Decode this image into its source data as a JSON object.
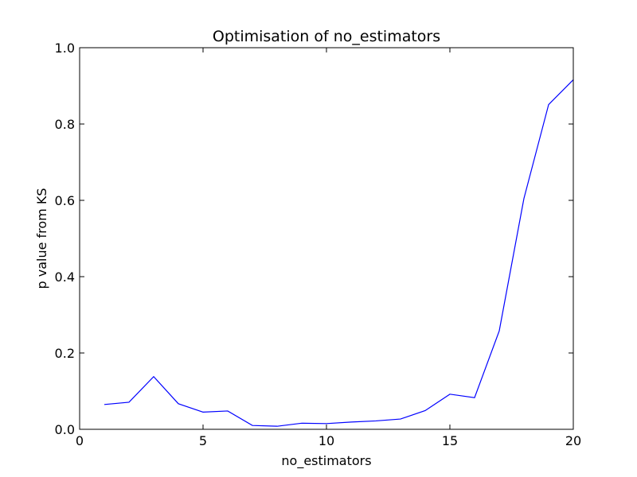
{
  "chart_data": {
    "type": "line",
    "title": "Optimisation of no_estimators",
    "xlabel": "no_estimators",
    "ylabel": "p value from KS",
    "xlim": [
      0,
      20
    ],
    "ylim": [
      0.0,
      1.0
    ],
    "xticks": [
      0,
      5,
      10,
      15,
      20
    ],
    "xtick_labels": [
      "0",
      "5",
      "10",
      "15",
      "20"
    ],
    "yticks": [
      0.0,
      0.2,
      0.4,
      0.6,
      0.8,
      1.0
    ],
    "ytick_labels": [
      "0.0",
      "0.2",
      "0.4",
      "0.6",
      "0.8",
      "1.0"
    ],
    "grid": false,
    "series": [
      {
        "name": "p value",
        "color": "#0000ff",
        "x": [
          1,
          2,
          3,
          4,
          5,
          6,
          7,
          8,
          9,
          10,
          11,
          12,
          13,
          14,
          15,
          16,
          17,
          18,
          19,
          20
        ],
        "y": [
          0.065,
          0.071,
          0.138,
          0.067,
          0.045,
          0.048,
          0.01,
          0.008,
          0.016,
          0.015,
          0.019,
          0.022,
          0.027,
          0.049,
          0.092,
          0.083,
          0.258,
          0.605,
          0.851,
          0.916
        ]
      }
    ]
  }
}
